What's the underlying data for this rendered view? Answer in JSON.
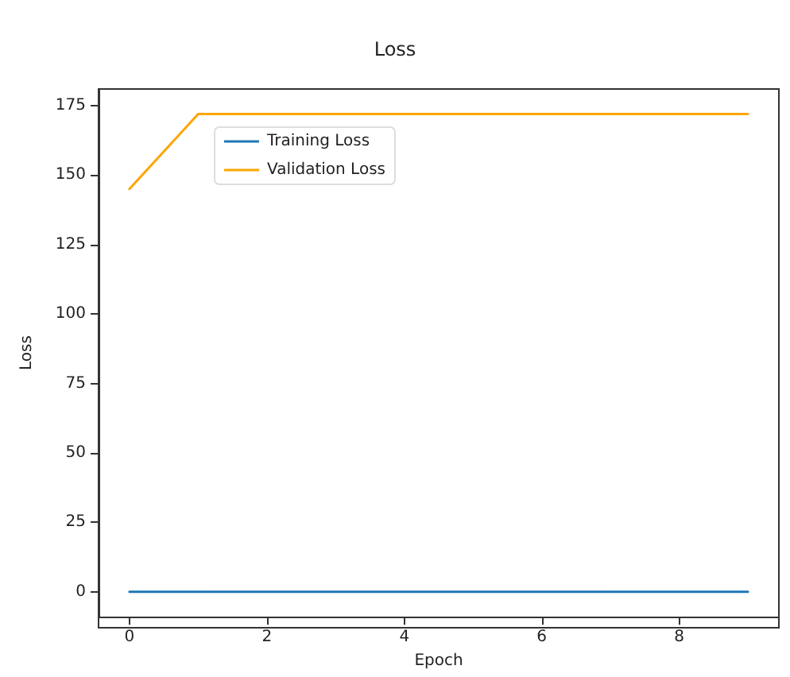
{
  "chart_data": {
    "type": "line",
    "title": "Loss",
    "xlabel": "Epoch",
    "ylabel": "Loss",
    "x": [
      0,
      1,
      2,
      3,
      4,
      5,
      6,
      7,
      8,
      9
    ],
    "series": [
      {
        "name": "Training Loss",
        "color": "#1f77b4",
        "values": [
          0,
          0,
          0,
          0,
          0,
          0,
          0,
          0,
          0,
          0
        ]
      },
      {
        "name": "Validation Loss",
        "color": "#ffa500",
        "values": [
          145,
          172,
          172,
          172,
          172,
          172,
          172,
          172,
          172,
          172
        ]
      }
    ],
    "xlim": [
      -0.45,
      9.45
    ],
    "xticks": [
      0,
      2,
      4,
      6,
      8
    ],
    "ylim": [
      -9,
      181
    ],
    "yticks": [
      0,
      25,
      50,
      75,
      100,
      125,
      150,
      175
    ],
    "grid": false,
    "legend": "top left",
    "marker": "none",
    "line_style": "solid"
  }
}
